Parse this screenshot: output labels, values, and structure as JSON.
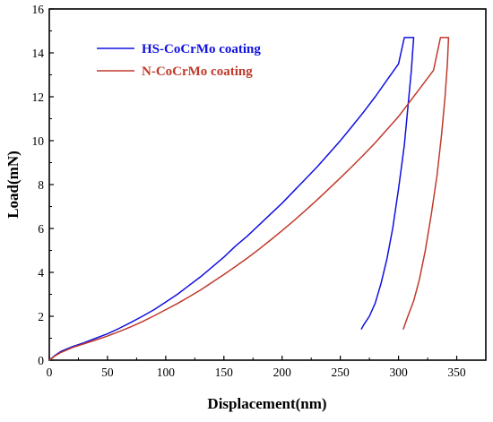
{
  "chart_data": {
    "type": "line",
    "xlabel": "Displacement(nm)",
    "ylabel": "Load(mN)",
    "xlim": [
      0,
      375
    ],
    "ylim": [
      0,
      16
    ],
    "xticks": [
      0,
      50,
      100,
      150,
      200,
      250,
      300,
      350
    ],
    "yticks": [
      0,
      2,
      4,
      6,
      8,
      10,
      12,
      14,
      16
    ],
    "grid": false,
    "legend_position": "top-center",
    "series": [
      {
        "name": "HS-CoCrMo coating",
        "color": "#1010e0",
        "x": [
          0,
          5,
          10,
          20,
          30,
          40,
          50,
          60,
          70,
          80,
          90,
          100,
          110,
          120,
          130,
          140,
          150,
          160,
          170,
          180,
          190,
          200,
          210,
          220,
          230,
          240,
          250,
          260,
          270,
          280,
          290,
          300,
          305,
          313,
          311,
          308,
          305,
          300,
          295,
          290,
          285,
          280,
          275,
          270,
          268
        ],
        "y": [
          0,
          0.22,
          0.4,
          0.62,
          0.8,
          1.0,
          1.2,
          1.45,
          1.72,
          2.0,
          2.3,
          2.65,
          3.0,
          3.4,
          3.8,
          4.25,
          4.7,
          5.2,
          5.65,
          6.15,
          6.65,
          7.15,
          7.7,
          8.25,
          8.8,
          9.4,
          10.0,
          10.65,
          11.3,
          12.0,
          12.75,
          13.5,
          14.7,
          14.7,
          13.2,
          11.5,
          9.8,
          7.8,
          6.0,
          4.6,
          3.5,
          2.6,
          2.0,
          1.6,
          1.4
        ]
      },
      {
        "name": "N-CoCrMo coating",
        "color": "#c0392b",
        "x": [
          0,
          5,
          10,
          20,
          30,
          40,
          50,
          60,
          70,
          80,
          90,
          100,
          110,
          120,
          130,
          140,
          150,
          160,
          170,
          180,
          190,
          200,
          210,
          220,
          230,
          240,
          250,
          260,
          270,
          280,
          290,
          300,
          310,
          320,
          330,
          336,
          343,
          342,
          340,
          337,
          333,
          328,
          323,
          318,
          313,
          308,
          304
        ],
        "y": [
          0,
          0.2,
          0.35,
          0.58,
          0.75,
          0.92,
          1.1,
          1.3,
          1.52,
          1.76,
          2.02,
          2.3,
          2.58,
          2.88,
          3.2,
          3.55,
          3.9,
          4.27,
          4.65,
          5.05,
          5.47,
          5.9,
          6.35,
          6.82,
          7.3,
          7.8,
          8.3,
          8.82,
          9.35,
          9.9,
          10.5,
          11.1,
          11.8,
          12.5,
          13.2,
          14.7,
          14.7,
          13.5,
          12.0,
          10.3,
          8.4,
          6.6,
          5.0,
          3.7,
          2.7,
          2.0,
          1.4
        ]
      }
    ]
  }
}
